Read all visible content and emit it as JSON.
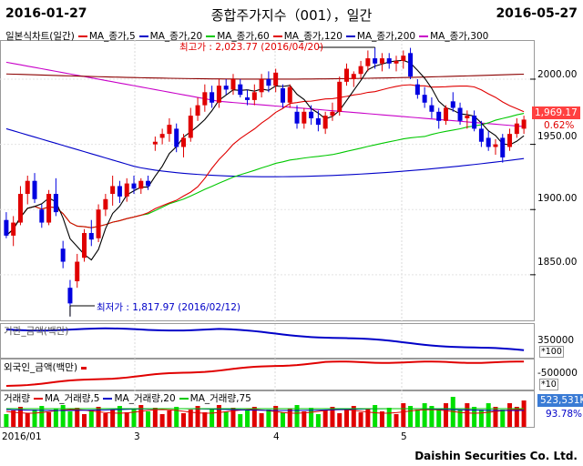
{
  "header": {
    "start_date": "2016-01-27",
    "end_date": "2016-05-27",
    "title": "종합주가지수（001），일간"
  },
  "legend": {
    "title": "일본식차트(일간)",
    "items": [
      {
        "label": "MA_종가,5",
        "color": "#e00000"
      },
      {
        "label": "MA_종가,20",
        "color": "#0000c8"
      },
      {
        "label": "MA_종가,60",
        "color": "#00c800"
      },
      {
        "label": "MA_종가,120",
        "color": "#e00000"
      },
      {
        "label": "MA_종가,200",
        "color": "#0000c8"
      },
      {
        "label": "MA_종가,300",
        "color": "#c800c8"
      }
    ]
  },
  "annotations": {
    "high": "최고가 : 2,023.77 (2016/04/20)",
    "low": "최저가 : 1,817.97 (2016/02/12)"
  },
  "price_axis": {
    "labels": [
      "2000.00",
      "1950.00",
      "1900.00",
      "1850.00"
    ],
    "current_price": "1,969.17",
    "change_pct": "0.62%"
  },
  "institution_panel": {
    "label": "기관_금액(백만)",
    "axis_top": "350000",
    "axis_unit": "*100"
  },
  "foreign_panel": {
    "label": "외국인_금액(백만)",
    "axis_top": "-500000",
    "axis_unit": "*10"
  },
  "volume_panel": {
    "title": "거래량",
    "items": [
      {
        "label": "MA_거래량,5",
        "color": "#e00000"
      },
      {
        "label": "MA_거래량,20",
        "color": "#0000c8"
      },
      {
        "label": "MA_거래량,75",
        "color": "#00c800"
      }
    ],
    "value": "523,531K",
    "pct": "93.78%"
  },
  "x_axis": {
    "months": [
      "2016/01",
      "3",
      "4",
      "5"
    ]
  },
  "footer": {
    "company": "Daishin Securities Co. Ltd."
  },
  "chart_data": {
    "type": "candlestick",
    "ylim": [
      1815,
      2030
    ],
    "candles": [
      {
        "o": 1892,
        "h": 1898,
        "l": 1878,
        "c": 1880
      },
      {
        "o": 1880,
        "h": 1895,
        "l": 1872,
        "c": 1890
      },
      {
        "o": 1890,
        "h": 1918,
        "l": 1888,
        "c": 1912
      },
      {
        "o": 1912,
        "h": 1926,
        "l": 1904,
        "c": 1922
      },
      {
        "o": 1922,
        "h": 1928,
        "l": 1905,
        "c": 1908
      },
      {
        "o": 1900,
        "h": 1904,
        "l": 1886,
        "c": 1890
      },
      {
        "o": 1890,
        "h": 1915,
        "l": 1888,
        "c": 1912
      },
      {
        "o": 1912,
        "h": 1924,
        "l": 1895,
        "c": 1898
      },
      {
        "o": 1870,
        "h": 1876,
        "l": 1855,
        "c": 1860
      },
      {
        "o": 1840,
        "h": 1846,
        "l": 1818,
        "c": 1828
      },
      {
        "o": 1845,
        "h": 1866,
        "l": 1840,
        "c": 1860
      },
      {
        "o": 1863,
        "h": 1885,
        "l": 1860,
        "c": 1882
      },
      {
        "o": 1882,
        "h": 1892,
        "l": 1872,
        "c": 1877
      },
      {
        "o": 1878,
        "h": 1904,
        "l": 1875,
        "c": 1900
      },
      {
        "o": 1900,
        "h": 1912,
        "l": 1895,
        "c": 1908
      },
      {
        "o": 1912,
        "h": 1926,
        "l": 1903,
        "c": 1918
      },
      {
        "o": 1918,
        "h": 1922,
        "l": 1905,
        "c": 1910
      },
      {
        "o": 1910,
        "h": 1924,
        "l": 1906,
        "c": 1920
      },
      {
        "o": 1920,
        "h": 1926,
        "l": 1912,
        "c": 1916
      },
      {
        "o": 1916,
        "h": 1924,
        "l": 1912,
        "c": 1922
      },
      {
        "o": 1922,
        "h": 1926,
        "l": 1915,
        "c": 1918
      },
      {
        "o": 1950,
        "h": 1956,
        "l": 1945,
        "c": 1952
      },
      {
        "o": 1955,
        "h": 1962,
        "l": 1950,
        "c": 1958
      },
      {
        "o": 1958,
        "h": 1970,
        "l": 1952,
        "c": 1965
      },
      {
        "o": 1962,
        "h": 1966,
        "l": 1944,
        "c": 1948
      },
      {
        "o": 1948,
        "h": 1958,
        "l": 1940,
        "c": 1955
      },
      {
        "o": 1955,
        "h": 1978,
        "l": 1952,
        "c": 1972
      },
      {
        "o": 1972,
        "h": 1986,
        "l": 1968,
        "c": 1980
      },
      {
        "o": 1980,
        "h": 1996,
        "l": 1975,
        "c": 1990
      },
      {
        "o": 1990,
        "h": 1995,
        "l": 1978,
        "c": 1982
      },
      {
        "o": 1982,
        "h": 2000,
        "l": 1978,
        "c": 1995
      },
      {
        "o": 1995,
        "h": 2000,
        "l": 1988,
        "c": 1992
      },
      {
        "o": 1992,
        "h": 2004,
        "l": 1988,
        "c": 2000
      },
      {
        "o": 1996,
        "h": 2000,
        "l": 1986,
        "c": 1988
      },
      {
        "o": 1986,
        "h": 1992,
        "l": 1980,
        "c": 1984
      },
      {
        "o": 1984,
        "h": 1996,
        "l": 1980,
        "c": 1990
      },
      {
        "o": 1990,
        "h": 2004,
        "l": 1986,
        "c": 2000
      },
      {
        "o": 2000,
        "h": 2006,
        "l": 1990,
        "c": 1995
      },
      {
        "o": 1995,
        "h": 2008,
        "l": 1990,
        "c": 2005
      },
      {
        "o": 1993,
        "h": 1996,
        "l": 1978,
        "c": 1982
      },
      {
        "o": 1982,
        "h": 1996,
        "l": 1978,
        "c": 1994
      },
      {
        "o": 1975,
        "h": 1980,
        "l": 1962,
        "c": 1966
      },
      {
        "o": 1966,
        "h": 1978,
        "l": 1962,
        "c": 1975
      },
      {
        "o": 1975,
        "h": 1980,
        "l": 1965,
        "c": 1970
      },
      {
        "o": 1970,
        "h": 1976,
        "l": 1960,
        "c": 1965
      },
      {
        "o": 1962,
        "h": 1975,
        "l": 1958,
        "c": 1972
      },
      {
        "o": 1972,
        "h": 1982,
        "l": 1968,
        "c": 1975
      },
      {
        "o": 1975,
        "h": 2002,
        "l": 1972,
        "c": 1998
      },
      {
        "o": 1998,
        "h": 2012,
        "l": 1995,
        "c": 2008
      },
      {
        "o": 2000,
        "h": 2006,
        "l": 1994,
        "c": 2004
      },
      {
        "o": 2004,
        "h": 2014,
        "l": 2000,
        "c": 2010
      },
      {
        "o": 2010,
        "h": 2022,
        "l": 2006,
        "c": 2016
      },
      {
        "o": 2016,
        "h": 2024,
        "l": 2008,
        "c": 2012
      },
      {
        "o": 2012,
        "h": 2020,
        "l": 2006,
        "c": 2016
      },
      {
        "o": 2016,
        "h": 2020,
        "l": 2008,
        "c": 2012
      },
      {
        "o": 2012,
        "h": 2018,
        "l": 2006,
        "c": 2014
      },
      {
        "o": 2014,
        "h": 2022,
        "l": 2008,
        "c": 2018
      },
      {
        "o": 2020,
        "h": 2024,
        "l": 2000,
        "c": 2002
      },
      {
        "o": 1996,
        "h": 2000,
        "l": 1985,
        "c": 1988
      },
      {
        "o": 1988,
        "h": 1994,
        "l": 1978,
        "c": 1982
      },
      {
        "o": 1980,
        "h": 1986,
        "l": 1970,
        "c": 1975
      },
      {
        "o": 1975,
        "h": 1978,
        "l": 1962,
        "c": 1968
      },
      {
        "o": 1968,
        "h": 1980,
        "l": 1965,
        "c": 1978
      },
      {
        "o": 1983,
        "h": 1990,
        "l": 1975,
        "c": 1978
      },
      {
        "o": 1978,
        "h": 1982,
        "l": 1965,
        "c": 1968
      },
      {
        "o": 1970,
        "h": 1976,
        "l": 1962,
        "c": 1972
      },
      {
        "o": 1972,
        "h": 1976,
        "l": 1960,
        "c": 1962
      },
      {
        "o": 1962,
        "h": 1968,
        "l": 1948,
        "c": 1952
      },
      {
        "o": 1955,
        "h": 1960,
        "l": 1945,
        "c": 1948
      },
      {
        "o": 1948,
        "h": 1954,
        "l": 1942,
        "c": 1950
      },
      {
        "o": 1955,
        "h": 1958,
        "l": 1936,
        "c": 1940
      },
      {
        "o": 1948,
        "h": 1962,
        "l": 1945,
        "c": 1958
      },
      {
        "o": 1958,
        "h": 1970,
        "l": 1955,
        "c": 1966
      },
      {
        "o": 1962,
        "h": 1972,
        "l": 1958,
        "c": 1969
      }
    ]
  }
}
